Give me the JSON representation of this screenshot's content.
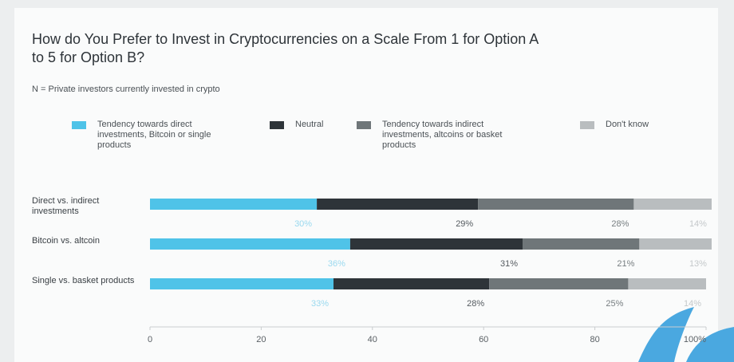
{
  "chart_data": {
    "type": "stacked-bar-horizontal",
    "title": "How do You Prefer to Invest in Cryptocurrencies on a Scale From 1 for Option A to 5 for Option B?",
    "subtitle": "N = Private investors currently invested in crypto",
    "categories": [
      "Direct vs. indirect investments",
      "Bitcoin vs. altcoin",
      "Single vs. basket products"
    ],
    "series": [
      {
        "name": "Tendency towards direct investments, Bitcoin or single products",
        "color": "#4fc3e8",
        "label_color": "#9ad9ef",
        "values": [
          30,
          36,
          33
        ],
        "value_labels": [
          "30%",
          "36%",
          "33%"
        ]
      },
      {
        "name": "Neutral",
        "color": "#2e3439",
        "label_color": "#555b60",
        "values": [
          29,
          31,
          28
        ],
        "value_labels": [
          "29%",
          "31%",
          "28%"
        ]
      },
      {
        "name": "Tendency towards indirect investments, altcoins or basket products",
        "color": "#6f7679",
        "label_color": "#777e81",
        "values": [
          28,
          21,
          25
        ],
        "value_labels": [
          "28%",
          "21%",
          "25%"
        ]
      },
      {
        "name": "Don't know",
        "color": "#b9bdbf",
        "label_color": "#c4c8ca",
        "values": [
          14,
          13,
          14
        ],
        "value_labels": [
          "14%",
          "13%",
          "14%"
        ]
      }
    ],
    "xlim": [
      0,
      100
    ],
    "xticks": [
      0,
      20,
      40,
      60,
      80,
      {
        "value": 100,
        "label": "100%"
      }
    ]
  }
}
